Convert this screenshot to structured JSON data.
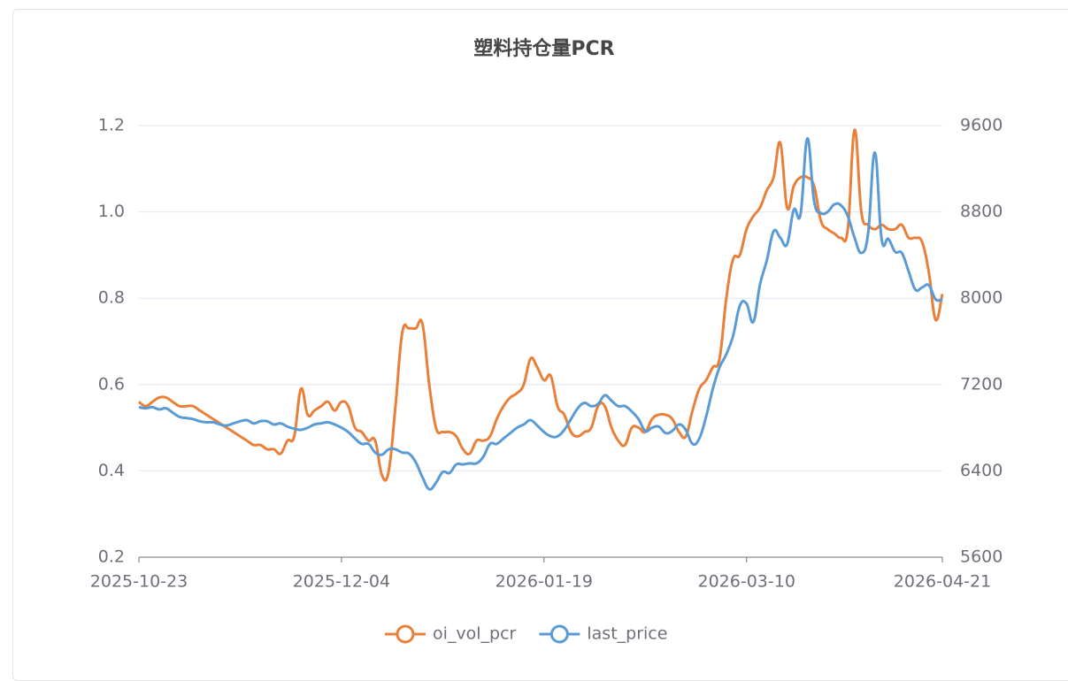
{
  "chart_data": {
    "type": "line",
    "title": "塑料持仓量PCR",
    "categories": [
      "2025-10-23",
      null,
      null,
      null,
      null,
      null,
      null,
      null,
      null,
      null,
      null,
      null,
      null,
      null,
      null,
      null,
      null,
      null,
      null,
      null,
      null,
      null,
      null,
      null,
      null,
      null,
      null,
      null,
      null,
      null,
      "2025-12-04",
      null,
      null,
      null,
      null,
      null,
      null,
      null,
      null,
      null,
      null,
      null,
      null,
      null,
      null,
      null,
      null,
      null,
      null,
      null,
      null,
      null,
      null,
      null,
      null,
      null,
      null,
      null,
      null,
      null,
      "2026-01-19",
      null,
      null,
      null,
      null,
      null,
      null,
      null,
      null,
      null,
      null,
      null,
      null,
      null,
      null,
      null,
      null,
      null,
      null,
      null,
      null,
      null,
      null,
      null,
      null,
      null,
      null,
      null,
      null,
      null,
      "2026-03-10",
      null,
      null,
      null,
      null,
      null,
      null,
      null,
      null,
      null,
      null,
      null,
      null,
      null,
      null,
      null,
      null,
      null,
      null,
      null,
      null,
      null,
      null,
      null,
      null,
      null,
      null,
      null,
      null,
      "2026-04-21"
    ],
    "series": [
      {
        "name": "oi_vol_pcr",
        "color": "#e8803a",
        "axis": "y",
        "values": [
          0.56,
          0.55,
          0.56,
          0.57,
          0.57,
          0.56,
          0.55,
          0.55,
          0.55,
          0.54,
          0.53,
          0.52,
          0.51,
          0.5,
          0.49,
          0.48,
          0.47,
          0.46,
          0.46,
          0.45,
          0.45,
          0.44,
          0.47,
          0.48,
          0.59,
          0.53,
          0.54,
          0.55,
          0.56,
          0.54,
          0.56,
          0.55,
          0.5,
          0.49,
          0.47,
          0.47,
          0.39,
          0.4,
          0.55,
          0.72,
          0.73,
          0.73,
          0.74,
          0.6,
          0.5,
          0.49,
          0.49,
          0.48,
          0.45,
          0.44,
          0.47,
          0.47,
          0.48,
          0.52,
          0.55,
          0.57,
          0.58,
          0.6,
          0.66,
          0.64,
          0.61,
          0.62,
          0.55,
          0.53,
          0.49,
          0.48,
          0.49,
          0.5,
          0.55,
          0.55,
          0.5,
          0.47,
          0.46,
          0.5,
          0.5,
          0.49,
          0.52,
          0.53,
          0.53,
          0.52,
          0.49,
          0.48,
          0.54,
          0.59,
          0.61,
          0.64,
          0.66,
          0.8,
          0.89,
          0.9,
          0.96,
          0.99,
          1.01,
          1.05,
          1.08,
          1.16,
          1.01,
          1.06,
          1.08,
          1.08,
          1.06,
          0.98,
          0.96,
          0.95,
          0.94,
          0.96,
          1.19,
          1.0,
          0.97,
          0.96,
          0.97,
          0.96,
          0.96,
          0.97,
          0.94,
          0.94,
          0.93,
          0.86,
          0.75,
          0.81
        ]
      },
      {
        "name": "last_price",
        "color": "#5b9bd5",
        "axis": "y2",
        "values": [
          6990,
          6980,
          6990,
          6970,
          6980,
          6940,
          6900,
          6890,
          6880,
          6860,
          6850,
          6850,
          6830,
          6820,
          6840,
          6860,
          6870,
          6840,
          6860,
          6860,
          6830,
          6840,
          6810,
          6790,
          6780,
          6800,
          6830,
          6840,
          6850,
          6830,
          6800,
          6760,
          6700,
          6650,
          6650,
          6570,
          6550,
          6600,
          6600,
          6570,
          6560,
          6480,
          6340,
          6230,
          6290,
          6390,
          6380,
          6460,
          6460,
          6470,
          6470,
          6530,
          6650,
          6650,
          6700,
          6750,
          6800,
          6830,
          6870,
          6820,
          6760,
          6720,
          6720,
          6780,
          6880,
          6980,
          7030,
          7000,
          7020,
          7100,
          7050,
          7000,
          7000,
          6950,
          6880,
          6770,
          6800,
          6810,
          6750,
          6770,
          6830,
          6780,
          6650,
          6700,
          6900,
          7160,
          7360,
          7480,
          7650,
          7930,
          7950,
          7780,
          8130,
          8350,
          8620,
          8560,
          8500,
          8820,
          8780,
          9480,
          8900,
          8790,
          8800,
          8870,
          8860,
          8760,
          8560,
          8420,
          8600,
          9350,
          8550,
          8550,
          8430,
          8420,
          8250,
          8080,
          8100,
          8120,
          7990,
          7990
        ]
      }
    ],
    "ylim": [
      0.2,
      1.2
    ],
    "yticks": [
      0.2,
      0.4,
      0.6,
      0.8,
      {
        "value": 1,
        "label": "1.0"
      },
      1.2
    ],
    "y2lim": [
      5600,
      9600
    ],
    "y2ticks": [
      5600,
      6400,
      7200,
      8000,
      8800,
      9600
    ],
    "grid": true,
    "legend": "bottom"
  }
}
